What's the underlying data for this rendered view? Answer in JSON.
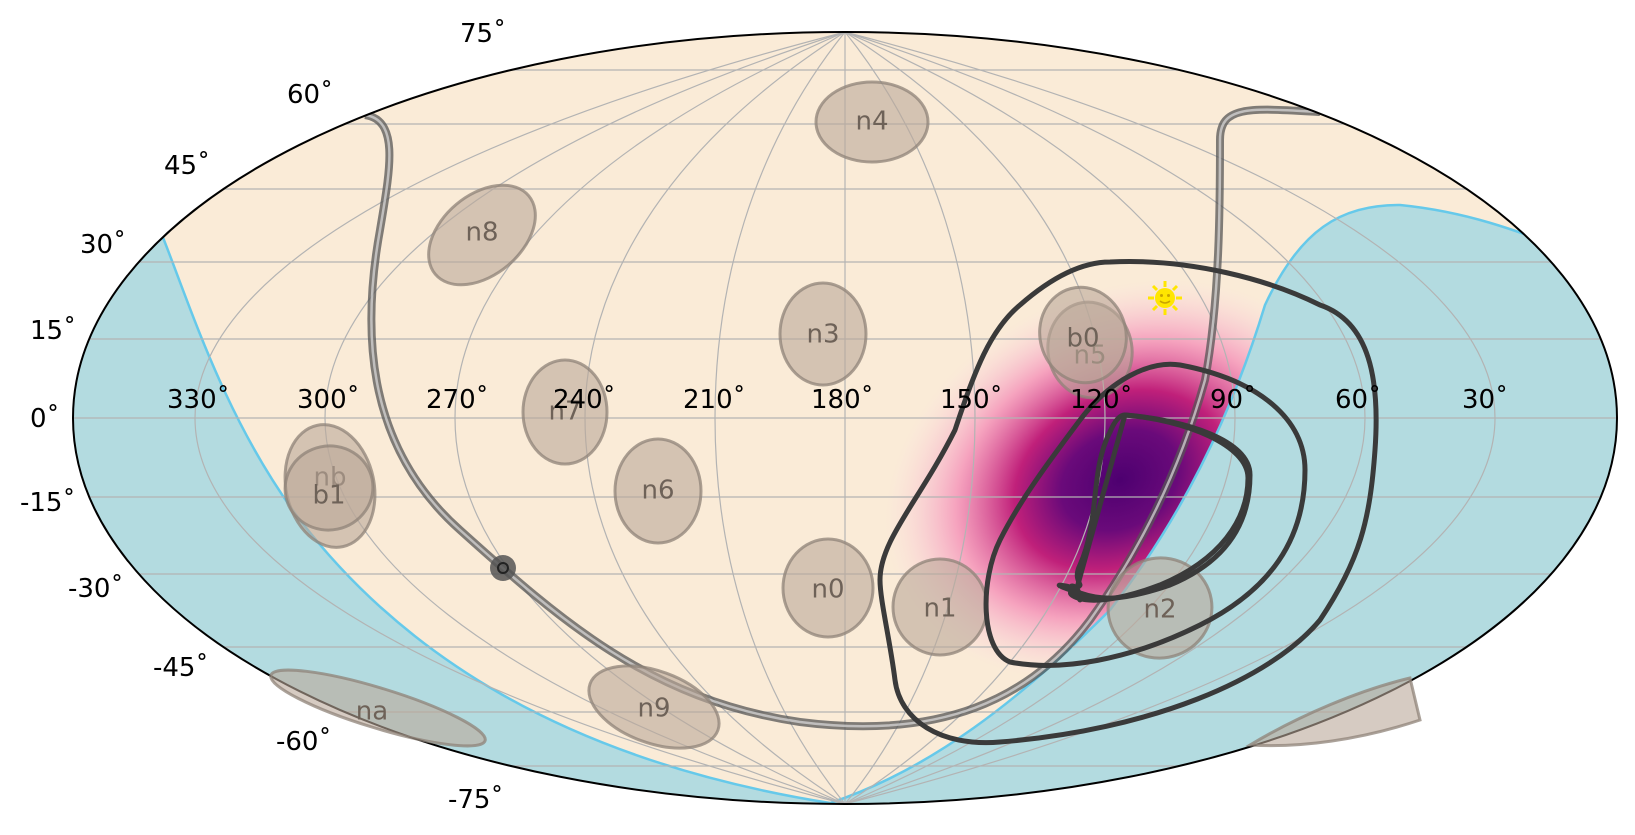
{
  "colors": {
    "sky": "#faebd7",
    "occulted": "#b3dbe0",
    "occult_edge": "#66c9ea",
    "grid": "#b3b3b3",
    "contour": "#3a3a3a",
    "sun": "#ffe600",
    "localization_peak": "#4d0070"
  },
  "lon_ticks": [
    "330˚",
    "300˚",
    "270˚",
    "240˚",
    "210˚",
    "180˚",
    "150˚",
    "120˚",
    "90˚",
    "60˚",
    "30˚"
  ],
  "lat_ticks": [
    "75˚",
    "60˚",
    "45˚",
    "30˚",
    "15˚",
    "0˚",
    "-15˚",
    "-30˚",
    "-45˚",
    "-60˚",
    "-75˚"
  ],
  "detectors": [
    {
      "id": "n0",
      "label": "n0"
    },
    {
      "id": "n1",
      "label": "n1"
    },
    {
      "id": "n2",
      "label": "n2"
    },
    {
      "id": "n3",
      "label": "n3"
    },
    {
      "id": "n4",
      "label": "n4"
    },
    {
      "id": "n5",
      "label": "n5"
    },
    {
      "id": "n6",
      "label": "n6"
    },
    {
      "id": "n7",
      "label": "n7"
    },
    {
      "id": "n8",
      "label": "n8"
    },
    {
      "id": "n9",
      "label": "n9"
    },
    {
      "id": "na",
      "label": "na"
    },
    {
      "id": "nb",
      "label": "nb"
    },
    {
      "id": "b0",
      "label": "b0"
    },
    {
      "id": "b1",
      "label": "b1"
    }
  ],
  "markers": {
    "sun": "sun-icon",
    "galactic_center": "galactic-center-marker"
  }
}
